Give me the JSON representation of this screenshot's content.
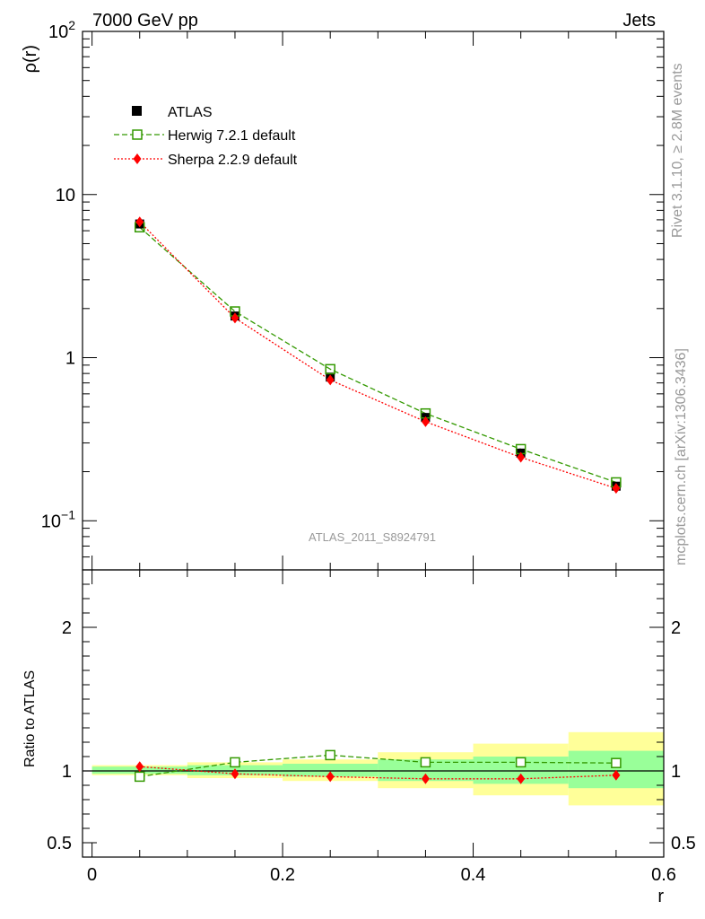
{
  "header": {
    "left_title": "7000 GeV pp",
    "right_title": "Jets",
    "side_label_top": "Rivet 3.1.10, ≥ 2.8M events",
    "side_label_bottom": "mcplots.cern.ch [arXiv:1306.3436]",
    "analysis_id": "ATLAS_2011_S8924791"
  },
  "colors": {
    "data": "#000000",
    "herwig": "#339900",
    "sherpa": "#ff0000",
    "band_outer": "#ffff99",
    "band_inner": "#99ff99"
  },
  "chart_data": [
    {
      "type": "scatter",
      "panel": "main",
      "ylabel": "ρ(r)",
      "yscale": "log",
      "ylim": [
        0.05,
        100
      ],
      "xlim": [
        -0.01,
        0.6
      ],
      "y_tick_labels": [
        "10^-1",
        "1",
        "10",
        "10^2"
      ],
      "x": [
        0.05,
        0.15,
        0.25,
        0.35,
        0.45,
        0.55
      ],
      "series": [
        {
          "name": "ATLAS",
          "values": [
            6.6,
            1.8,
            0.76,
            0.43,
            0.26,
            0.163
          ]
        },
        {
          "name": "Herwig 7.2.1 default",
          "values": [
            6.3,
            1.92,
            0.85,
            0.455,
            0.275,
            0.172
          ]
        },
        {
          "name": "Sherpa 2.2.9 default",
          "values": [
            6.8,
            1.75,
            0.73,
            0.405,
            0.245,
            0.158
          ]
        }
      ]
    },
    {
      "type": "line",
      "panel": "ratio",
      "ylabel": "Ratio to ATLAS",
      "xlabel": "r",
      "ylim": [
        0.4,
        2.4
      ],
      "xlim": [
        -0.01,
        0.6
      ],
      "y_tick_labels": [
        "0.5",
        "1",
        "2"
      ],
      "x_tick_labels": [
        "0",
        "0.2",
        "0.4",
        "0.6"
      ],
      "x": [
        0.05,
        0.15,
        0.25,
        0.35,
        0.45,
        0.55
      ],
      "bins": [
        [
          0.0,
          0.1
        ],
        [
          0.1,
          0.2
        ],
        [
          0.2,
          0.3
        ],
        [
          0.3,
          0.4
        ],
        [
          0.4,
          0.5
        ],
        [
          0.5,
          0.6
        ]
      ],
      "band_outer": [
        [
          0.97,
          1.04
        ],
        [
          0.95,
          1.06
        ],
        [
          0.93,
          1.08
        ],
        [
          0.88,
          1.13
        ],
        [
          0.83,
          1.19
        ],
        [
          0.76,
          1.27
        ]
      ],
      "band_inner": [
        [
          0.98,
          1.03
        ],
        [
          0.97,
          1.04
        ],
        [
          0.96,
          1.05
        ],
        [
          0.93,
          1.08
        ],
        [
          0.91,
          1.1
        ],
        [
          0.88,
          1.14
        ]
      ],
      "series": [
        {
          "name": "Herwig 7.2.1 default",
          "values": [
            0.96,
            1.06,
            1.11,
            1.06,
            1.06,
            1.055
          ]
        },
        {
          "name": "Sherpa 2.2.9 default",
          "values": [
            1.03,
            0.98,
            0.96,
            0.945,
            0.945,
            0.97
          ]
        }
      ]
    }
  ]
}
